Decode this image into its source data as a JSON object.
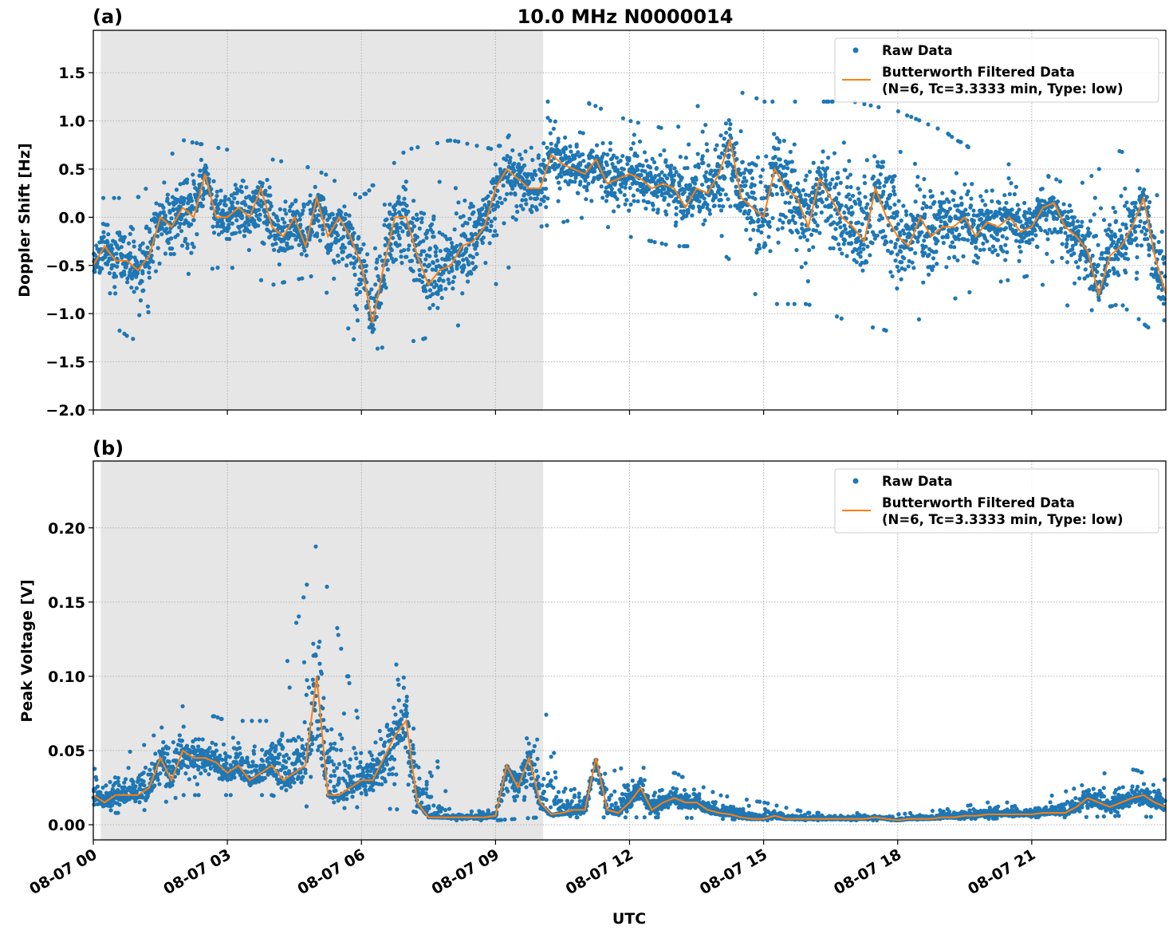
{
  "chart_data": [
    {
      "type": "scatter+line",
      "panel_label": "(a)",
      "title": "10.0 MHz N0000014",
      "xlabel": "",
      "ylabel": "Doppler Shift [Hz]",
      "ylim": [
        -2.0,
        1.94
      ],
      "yticks": [
        "1.5",
        "1.0",
        "0.5",
        "0.0",
        "−0.5",
        "−1.0",
        "−1.5",
        "−2.0"
      ],
      "ytick_values": [
        1.5,
        1.0,
        0.5,
        0.0,
        -0.5,
        -1.0,
        -1.5,
        -2.0
      ],
      "xlim": [
        "08-07 00:00",
        "08-08 00:00"
      ],
      "grid": true,
      "legend_position": "top-right",
      "shaded_region": {
        "start": "08-07 00:10",
        "end": "08-07 10:04",
        "color": "#e6e6e6"
      },
      "series": [
        {
          "name": "Raw Data",
          "kind": "scatter",
          "color": "#1f77b4",
          "envelope_hours": [
            "00",
            "01",
            "02",
            "03",
            "04",
            "05",
            "06",
            "07",
            "08",
            "09",
            "10",
            "11",
            "12",
            "13",
            "14",
            "15",
            "16",
            "17",
            "18",
            "19",
            "20",
            "21",
            "22",
            "23",
            "24"
          ],
          "lower": [
            -1.0,
            -1.3,
            -0.6,
            -0.5,
            -0.7,
            -0.6,
            -1.4,
            -1.3,
            -1.2,
            -0.7,
            -0.1,
            0.0,
            -0.2,
            -0.3,
            -0.3,
            -0.9,
            -0.9,
            -1.1,
            -1.2,
            -0.9,
            -0.7,
            -0.6,
            -1.0,
            -0.9,
            -1.3
          ],
          "upper": [
            0.2,
            0.2,
            0.8,
            0.7,
            0.6,
            0.5,
            0.2,
            0.7,
            0.8,
            0.7,
            1.2,
            1.2,
            1.0,
            0.9,
            1.4,
            1.2,
            1.2,
            1.2,
            1.1,
            0.9,
            0.6,
            0.5,
            0.3,
            0.7,
            0.1
          ]
        },
        {
          "name": "Butterworth Filtered Data\n(N=6, Tc=3.3333 min, Type: low)",
          "kind": "line",
          "color": "#ff7f0e",
          "values": [
            -0.5,
            -0.3,
            -0.45,
            -0.45,
            -0.55,
            -0.4,
            0.0,
            -0.1,
            0.1,
            0.0,
            0.45,
            0.0,
            0.0,
            0.1,
            0.0,
            0.3,
            -0.1,
            -0.2,
            0.0,
            -0.3,
            0.2,
            -0.2,
            0.0,
            -0.2,
            -0.5,
            -1.1,
            -0.5,
            0.0,
            0.0,
            -0.4,
            -0.7,
            -0.55,
            -0.5,
            -0.3,
            -0.25,
            -0.1,
            0.3,
            0.5,
            0.4,
            0.3,
            0.3,
            0.65,
            0.55,
            0.5,
            0.45,
            0.6,
            0.35,
            0.4,
            0.45,
            0.4,
            0.3,
            0.35,
            0.3,
            0.1,
            0.3,
            0.25,
            0.45,
            0.8,
            0.2,
            0.1,
            0.0,
            0.5,
            0.3,
            0.2,
            -0.1,
            0.4,
            0.2,
            0.0,
            -0.1,
            -0.25,
            0.3,
            0.0,
            -0.2,
            -0.3,
            0.0,
            -0.2,
            -0.1,
            -0.1,
            0.0,
            -0.2,
            -0.05,
            -0.1,
            0.0,
            -0.15,
            -0.1,
            0.1,
            0.15,
            -0.1,
            -0.2,
            -0.35,
            -0.8,
            -0.4,
            -0.3,
            -0.1,
            0.2,
            -0.4,
            -0.8
          ]
        }
      ]
    },
    {
      "type": "scatter+line",
      "panel_label": "(b)",
      "title": "",
      "xlabel": "UTC",
      "ylabel": "Peak Voltage [V]",
      "ylim": [
        -0.0102,
        0.245
      ],
      "yticks": [
        "0.20",
        "0.15",
        "0.10",
        "0.05",
        "0.00"
      ],
      "ytick_values": [
        0.2,
        0.15,
        0.1,
        0.05,
        0.0
      ],
      "xlim": [
        "08-07 00:00",
        "08-08 00:00"
      ],
      "xticks": [
        "08-07 00",
        "08-07 03",
        "08-07 06",
        "08-07 09",
        "08-07 12",
        "08-07 15",
        "08-07 18",
        "08-07 21"
      ],
      "grid": true,
      "legend_position": "top-right",
      "shaded_region": {
        "start": "08-07 00:10",
        "end": "08-07 10:04",
        "color": "#e6e6e6"
      },
      "series": [
        {
          "name": "Raw Data",
          "kind": "scatter",
          "color": "#1f77b4",
          "envelope_hours": [
            "00",
            "01",
            "02",
            "03",
            "04",
            "05",
            "06",
            "07",
            "08",
            "09",
            "10",
            "11",
            "12",
            "13",
            "14",
            "15",
            "16",
            "17",
            "18",
            "19",
            "20",
            "21",
            "22",
            "23",
            "24"
          ],
          "lower": [
            0.008,
            0.008,
            0.02,
            0.02,
            0.02,
            0.01,
            0.012,
            0.01,
            0.003,
            0.003,
            0.005,
            0.005,
            0.005,
            0.005,
            0.004,
            0.003,
            0.003,
            0.003,
            0.003,
            0.004,
            0.004,
            0.005,
            0.005,
            0.006,
            0.005
          ],
          "upper": [
            0.045,
            0.05,
            0.08,
            0.07,
            0.07,
            0.19,
            0.06,
            0.12,
            0.008,
            0.01,
            0.08,
            0.03,
            0.04,
            0.035,
            0.02,
            0.015,
            0.008,
            0.008,
            0.007,
            0.01,
            0.015,
            0.015,
            0.025,
            0.04,
            0.03
          ]
        },
        {
          "name": "Butterworth Filtered Data\n(N=6, Tc=3.3333 min, Type: low)",
          "kind": "line",
          "color": "#ff7f0e",
          "values": [
            0.02,
            0.015,
            0.02,
            0.02,
            0.02,
            0.025,
            0.045,
            0.03,
            0.05,
            0.045,
            0.045,
            0.042,
            0.035,
            0.04,
            0.03,
            0.035,
            0.04,
            0.03,
            0.035,
            0.04,
            0.1,
            0.02,
            0.02,
            0.025,
            0.03,
            0.03,
            0.045,
            0.06,
            0.07,
            0.015,
            0.005,
            0.005,
            0.005,
            0.005,
            0.005,
            0.005,
            0.006,
            0.04,
            0.025,
            0.045,
            0.015,
            0.007,
            0.008,
            0.01,
            0.01,
            0.045,
            0.01,
            0.008,
            0.015,
            0.025,
            0.01,
            0.015,
            0.018,
            0.015,
            0.015,
            0.01,
            0.008,
            0.007,
            0.005,
            0.004,
            0.004,
            0.006,
            0.004,
            0.004,
            0.004,
            0.004,
            0.004,
            0.004,
            0.004,
            0.004,
            0.005,
            0.004,
            0.003,
            0.004,
            0.004,
            0.004,
            0.005,
            0.005,
            0.006,
            0.006,
            0.007,
            0.007,
            0.007,
            0.007,
            0.007,
            0.008,
            0.008,
            0.008,
            0.012,
            0.018,
            0.015,
            0.012,
            0.015,
            0.018,
            0.02,
            0.015,
            0.012
          ]
        }
      ]
    }
  ],
  "time_utc": [
    "00:00",
    "00:15",
    "00:30",
    "00:45",
    "01:00",
    "01:15",
    "01:30",
    "01:45",
    "02:00",
    "02:15",
    "02:30",
    "02:45",
    "03:00",
    "03:15",
    "03:30",
    "03:45",
    "04:00",
    "04:15",
    "04:30",
    "04:45",
    "05:00",
    "05:15",
    "05:30",
    "05:45",
    "06:00",
    "06:15",
    "06:30",
    "06:45",
    "07:00",
    "07:15",
    "07:30",
    "07:45",
    "08:00",
    "08:15",
    "08:30",
    "08:45",
    "09:00",
    "09:15",
    "09:30",
    "09:45",
    "10:00",
    "10:15",
    "10:30",
    "10:45",
    "11:00",
    "11:15",
    "11:30",
    "11:45",
    "12:00",
    "12:15",
    "12:30",
    "12:45",
    "13:00",
    "13:15",
    "13:30",
    "13:45",
    "14:00",
    "14:15",
    "14:30",
    "14:45",
    "15:00",
    "15:15",
    "15:30",
    "15:45",
    "16:00",
    "16:15",
    "16:30",
    "16:45",
    "17:00",
    "17:15",
    "17:30",
    "17:45",
    "18:00",
    "18:15",
    "18:30",
    "18:45",
    "19:00",
    "19:15",
    "19:30",
    "19:45",
    "20:00",
    "20:15",
    "20:30",
    "20:45",
    "21:00",
    "21:15",
    "21:30",
    "21:45",
    "22:00",
    "22:15",
    "22:30",
    "22:45",
    "23:00",
    "23:15",
    "23:30",
    "23:45",
    "24:00"
  ],
  "legend": {
    "raw_label": "Raw Data",
    "filtered_line1": "Butterworth Filtered Data",
    "filtered_line2": "(N=6, Tc=3.3333 min, Type: low)"
  }
}
